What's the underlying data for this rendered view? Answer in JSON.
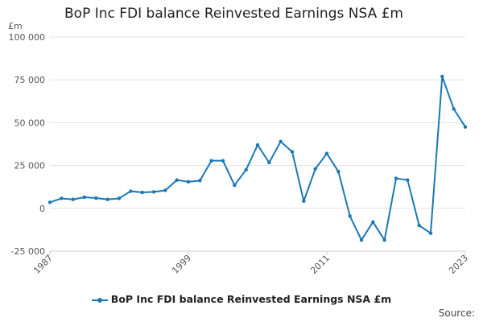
{
  "colors": {
    "series": "#1a78b4",
    "grid": "#e3e3e3",
    "axis": "#cccccc"
  },
  "chart_data": {
    "type": "line",
    "title": "BoP Inc FDI balance Reinvested Earnings NSA £m",
    "ylabel": "£m",
    "ylim": [
      -25000,
      100000
    ],
    "yticks": [
      100000,
      75000,
      50000,
      25000,
      0,
      -25000
    ],
    "ytick_labels": [
      "100 000",
      "75 000",
      "50 000",
      "25 000",
      "0",
      "-25 000"
    ],
    "xlim": [
      1987,
      2023
    ],
    "xticks": [
      1987,
      1999,
      2011,
      2023
    ],
    "xtick_labels": [
      "1987",
      "1999",
      "2011",
      "2023"
    ],
    "grid": true,
    "legend_position": "bottom",
    "series": [
      {
        "name": "BoP Inc FDI balance Reinvested Earnings NSA £m",
        "x": [
          1987,
          1988,
          1989,
          1990,
          1991,
          1992,
          1993,
          1994,
          1995,
          1996,
          1997,
          1998,
          1999,
          2000,
          2001,
          2002,
          2003,
          2004,
          2005,
          2006,
          2007,
          2008,
          2009,
          2010,
          2011,
          2012,
          2013,
          2014,
          2015,
          2016,
          2017,
          2018,
          2019,
          2020,
          2021,
          2022,
          2023
        ],
        "y": [
          3500,
          5800,
          5200,
          6500,
          6000,
          5200,
          5800,
          10000,
          9300,
          9600,
          10500,
          16500,
          15500,
          16200,
          27800,
          27800,
          13500,
          22500,
          37000,
          26700,
          39000,
          33000,
          4200,
          23000,
          32000,
          21500,
          -4500,
          -18500,
          -8000,
          -18500,
          17500,
          16500,
          -10000,
          -14500,
          77000,
          58000,
          47500
        ]
      }
    ]
  },
  "legend": {
    "label": "BoP Inc FDI balance Reinvested Earnings NSA £m"
  },
  "footer": {
    "source_label": "Source:"
  }
}
